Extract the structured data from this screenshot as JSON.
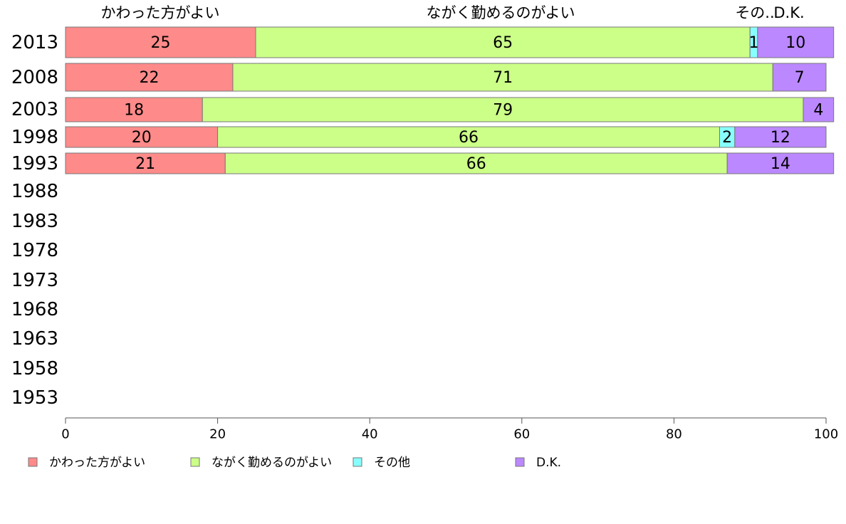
{
  "chart_data": {
    "type": "bar",
    "orientation": "horizontal",
    "stacked": true,
    "categories": [
      "2013",
      "2008",
      "2003",
      "1998",
      "1993",
      "1988",
      "1983",
      "1978",
      "1973",
      "1968",
      "1963",
      "1958",
      "1953"
    ],
    "series": [
      {
        "name": "かわった方がよい",
        "color": "#ff8a8a",
        "values": [
          25,
          22,
          18,
          20,
          21,
          null,
          null,
          null,
          null,
          null,
          null,
          null,
          null
        ]
      },
      {
        "name": "ながく勤めるのがよい",
        "color": "#ccff88",
        "values": [
          65,
          71,
          79,
          66,
          66,
          null,
          null,
          null,
          null,
          null,
          null,
          null,
          null
        ]
      },
      {
        "name": "その他",
        "color": "#88ffff",
        "values": [
          1,
          0,
          0,
          2,
          0,
          null,
          null,
          null,
          null,
          null,
          null,
          null,
          null
        ]
      },
      {
        "name": "D.K.",
        "color": "#bb88ff",
        "values": [
          10,
          7,
          4,
          12,
          14,
          null,
          null,
          null,
          null,
          null,
          null,
          null,
          null
        ]
      }
    ],
    "top_labels": [
      "かわった方がよい",
      "ながく勤めるのがよい",
      "その..",
      "D.K."
    ],
    "x_ticks": [
      0,
      20,
      40,
      60,
      80,
      100
    ],
    "xlim": [
      0,
      100
    ],
    "grid": false,
    "legend_position": "bottom"
  }
}
